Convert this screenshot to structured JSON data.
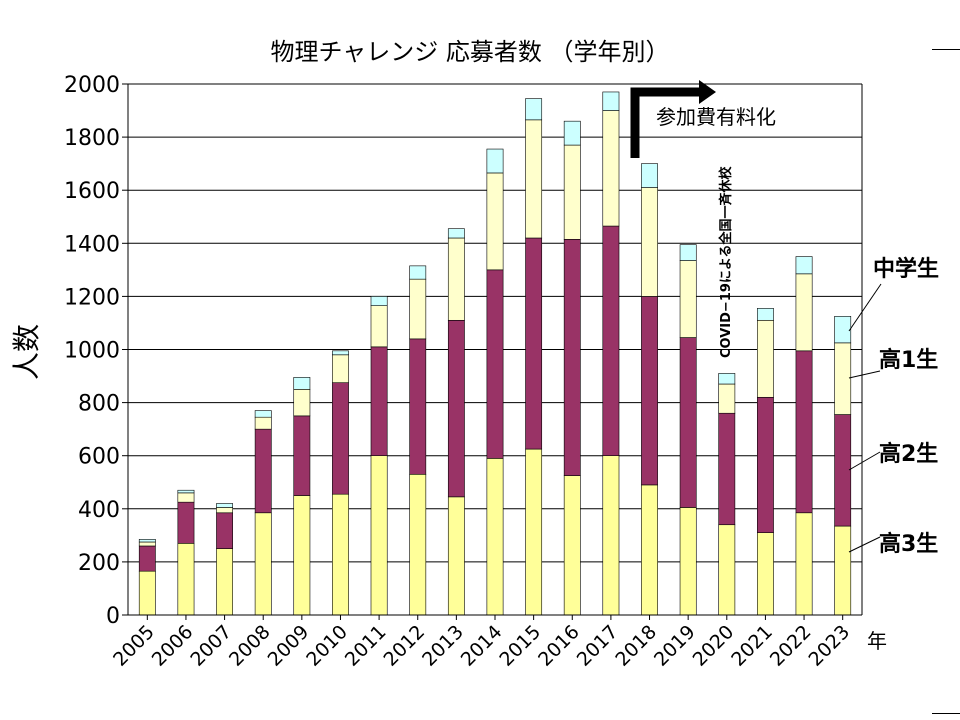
{
  "chart_data": {
    "type": "bar",
    "stacked": true,
    "title": "物理チャレンジ 応募者数 （学年別）",
    "ylabel": "人数",
    "xlabel": "年",
    "ylim": [
      0,
      2000
    ],
    "yticks": [
      0,
      200,
      400,
      600,
      800,
      1000,
      1200,
      1400,
      1600,
      1800,
      2000
    ],
    "grid": true,
    "categories": [
      "2005",
      "2006",
      "2007",
      "2008",
      "2009",
      "2010",
      "2011",
      "2012",
      "2013",
      "2014",
      "2015",
      "2016",
      "2017",
      "2018",
      "2019",
      "2020",
      "2021",
      "2022",
      "2023"
    ],
    "series": [
      {
        "name": "高3生",
        "color": "#ffff99",
        "values": [
          165,
          270,
          250,
          385,
          450,
          455,
          600,
          530,
          445,
          590,
          625,
          525,
          600,
          490,
          405,
          340,
          310,
          385,
          335
        ]
      },
      {
        "name": "高2生",
        "color": "#993366",
        "values": [
          95,
          155,
          135,
          315,
          300,
          420,
          410,
          510,
          665,
          710,
          795,
          890,
          865,
          710,
          640,
          420,
          510,
          610,
          420
        ]
      },
      {
        "name": "高1生",
        "color": "#ffffcc",
        "values": [
          15,
          35,
          20,
          45,
          100,
          105,
          155,
          225,
          310,
          365,
          445,
          355,
          435,
          410,
          290,
          110,
          290,
          290,
          270
        ]
      },
      {
        "name": "中学生",
        "color": "#ccffff",
        "values": [
          10,
          10,
          15,
          25,
          45,
          15,
          35,
          50,
          35,
          90,
          80,
          90,
          70,
          90,
          60,
          40,
          45,
          65,
          100
        ]
      }
    ],
    "annotations": [
      {
        "text": "参加費有料化",
        "kind": "arrow-label"
      },
      {
        "text": "COVID−19による全国一斉休校",
        "kind": "vertical-label"
      }
    ]
  }
}
